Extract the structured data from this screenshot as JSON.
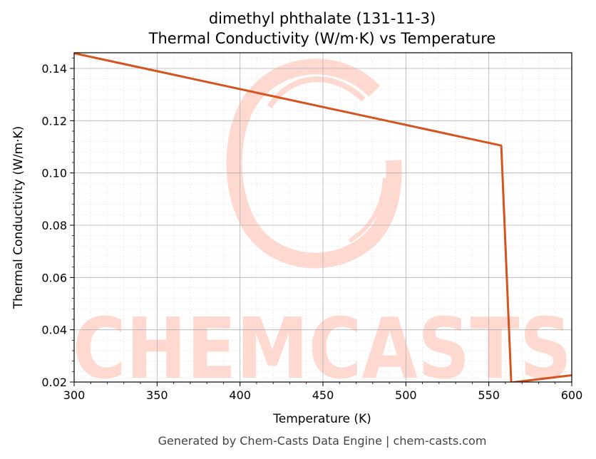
{
  "chart_data": {
    "type": "line",
    "title": "dimethyl phthalate (131-11-3)",
    "subtitle": "Thermal Conductivity (W/m·K) vs Temperature",
    "xlabel": "Temperature (K)",
    "ylabel": "Thermal Conductivity (W/m·K)",
    "xlim": [
      300,
      600
    ],
    "ylim": [
      0.02,
      0.146
    ],
    "xticks": [
      300,
      350,
      400,
      450,
      500,
      550,
      600
    ],
    "yticks": [
      0.02,
      0.04,
      0.06,
      0.08,
      0.1,
      0.12,
      0.14
    ],
    "xtick_labels": [
      "300",
      "350",
      "400",
      "450",
      "500",
      "550",
      "600"
    ],
    "ytick_labels": [
      "0.02",
      "0.04",
      "0.06",
      "0.08",
      "0.10",
      "0.12",
      "0.14"
    ],
    "grid": true,
    "series": [
      {
        "color": "#d4531f",
        "x": [
          300,
          557.5,
          563.5,
          600
        ],
        "y": [
          0.1458,
          0.1105,
          0.0198,
          0.0226
        ]
      }
    ]
  },
  "watermark": {
    "text": "CHEMCASTS",
    "color": "#ffd9d0"
  },
  "footer": {
    "text": "Generated by Chem-Casts Data Engine | chem-casts.com"
  }
}
